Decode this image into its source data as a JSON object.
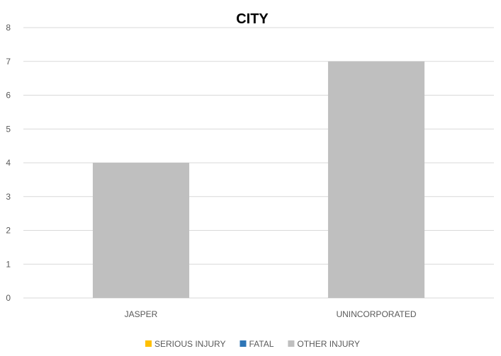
{
  "chart_data": {
    "type": "bar",
    "title": "CITY",
    "categories": [
      "JASPER",
      "UNINCORPORATED"
    ],
    "series": [
      {
        "name": "SERIOUS INJURY",
        "color": "#ffc000",
        "values": [
          0,
          0
        ]
      },
      {
        "name": "FATAL",
        "color": "#2e75b6",
        "values": [
          0,
          0
        ]
      },
      {
        "name": "OTHER INJURY",
        "color": "#bfbfbf",
        "values": [
          4,
          7
        ]
      }
    ],
    "ylim": [
      0,
      8
    ],
    "yticks": [
      0,
      1,
      2,
      3,
      4,
      5,
      6,
      7,
      8
    ],
    "grid": true,
    "legend": "bottom"
  }
}
